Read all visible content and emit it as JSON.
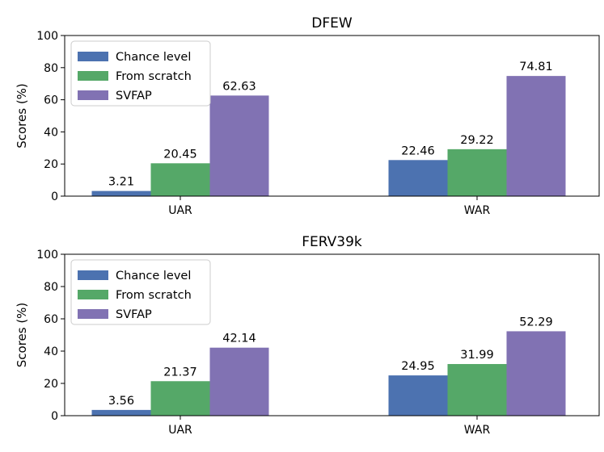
{
  "chart_data": [
    {
      "type": "bar",
      "title": "DFEW",
      "categories": [
        "UAR",
        "WAR"
      ],
      "ylabel": "Scores (%)",
      "xlabel": "",
      "ylim": [
        0,
        100
      ],
      "yticks": [
        0,
        20,
        40,
        60,
        80,
        100
      ],
      "legend_position": "top-left",
      "series": [
        {
          "name": "Chance level",
          "color": "#4c72b0",
          "values": [
            3.21,
            22.46
          ],
          "labels": [
            "3.21",
            "22.46"
          ]
        },
        {
          "name": "From scratch",
          "color": "#55a868",
          "values": [
            20.45,
            29.22
          ],
          "labels": [
            "20.45",
            "29.22"
          ]
        },
        {
          "name": "SVFAP",
          "color": "#8172b3",
          "values": [
            62.63,
            74.81
          ],
          "labels": [
            "62.63",
            "74.81"
          ]
        }
      ]
    },
    {
      "type": "bar",
      "title": "FERV39k",
      "categories": [
        "UAR",
        "WAR"
      ],
      "ylabel": "Scores (%)",
      "xlabel": "",
      "ylim": [
        0,
        100
      ],
      "yticks": [
        0,
        20,
        40,
        60,
        80,
        100
      ],
      "legend_position": "top-left",
      "series": [
        {
          "name": "Chance level",
          "color": "#4c72b0",
          "values": [
            3.56,
            24.95
          ],
          "labels": [
            "3.56",
            "24.95"
          ]
        },
        {
          "name": "From scratch",
          "color": "#55a868",
          "values": [
            21.37,
            31.99
          ],
          "labels": [
            "21.37",
            "31.99"
          ]
        },
        {
          "name": "SVFAP",
          "color": "#8172b3",
          "values": [
            42.14,
            52.29
          ],
          "labels": [
            "42.14",
            "52.29"
          ]
        }
      ]
    }
  ]
}
